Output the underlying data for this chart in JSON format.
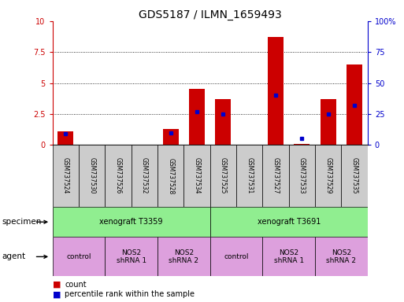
{
  "title": "GDS5187 / ILMN_1659493",
  "samples": [
    "GSM737524",
    "GSM737530",
    "GSM737526",
    "GSM737532",
    "GSM737528",
    "GSM737534",
    "GSM737525",
    "GSM737531",
    "GSM737527",
    "GSM737533",
    "GSM737529",
    "GSM737535"
  ],
  "counts": [
    1.1,
    0.0,
    0.0,
    0.0,
    1.3,
    4.5,
    3.7,
    0.0,
    8.7,
    0.1,
    3.7,
    6.5
  ],
  "percentiles": [
    0.9,
    0.0,
    0.0,
    0.0,
    1.0,
    2.7,
    2.5,
    0.0,
    4.0,
    0.5,
    2.5,
    3.2
  ],
  "ylim_left": [
    0,
    10
  ],
  "ylim_right": [
    0,
    100
  ],
  "yticks_left": [
    0,
    2.5,
    5,
    7.5,
    10
  ],
  "yticks_right": [
    0,
    25,
    50,
    75,
    100
  ],
  "ytick_labels_left": [
    "0",
    "2.5",
    "5",
    "7.5",
    "10"
  ],
  "ytick_labels_right": [
    "0",
    "25",
    "50",
    "75",
    "100%"
  ],
  "specimen_groups": [
    {
      "label": "xenograft T3359",
      "start": 0,
      "end": 6,
      "color": "#90EE90"
    },
    {
      "label": "xenograft T3691",
      "start": 6,
      "end": 12,
      "color": "#90EE90"
    }
  ],
  "agent_groups": [
    {
      "label": "control",
      "start": 0,
      "end": 2,
      "color": "#DDA0DD"
    },
    {
      "label": "NOS2\nshRNA 1",
      "start": 2,
      "end": 4,
      "color": "#DDA0DD"
    },
    {
      "label": "NOS2\nshRNA 2",
      "start": 4,
      "end": 6,
      "color": "#DDA0DD"
    },
    {
      "label": "control",
      "start": 6,
      "end": 8,
      "color": "#DDA0DD"
    },
    {
      "label": "NOS2\nshRNA 1",
      "start": 8,
      "end": 10,
      "color": "#DDA0DD"
    },
    {
      "label": "NOS2\nshRNA 2",
      "start": 10,
      "end": 12,
      "color": "#DDA0DD"
    }
  ],
  "bar_color": "#CC0000",
  "dot_color": "#0000CC",
  "bar_width": 0.6,
  "legend_count_label": "count",
  "legend_pct_label": "percentile rank within the sample",
  "specimen_label": "specimen",
  "agent_label": "agent",
  "title_fontsize": 10,
  "tick_fontsize": 7,
  "label_fontsize": 7,
  "left_tick_color": "#CC0000",
  "right_tick_color": "#0000CC"
}
